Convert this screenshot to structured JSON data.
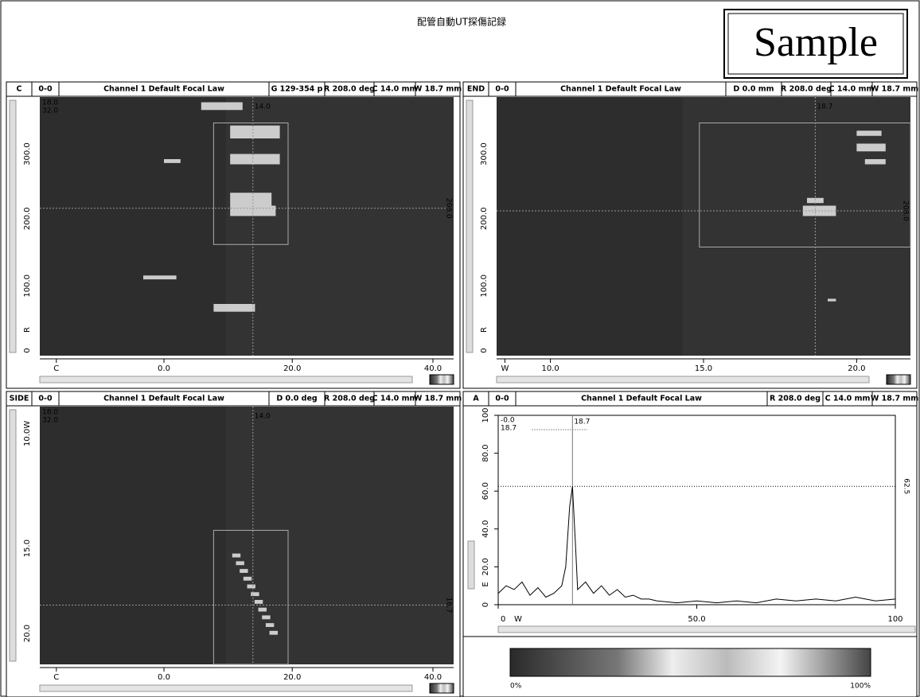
{
  "header": {
    "title": "配管自動UT探傷記録",
    "stamp": "Sample"
  },
  "panels": [
    {
      "view": "C",
      "group": "0-0",
      "focal_law": "Channel 1 Default Focal Law",
      "readouts": [
        "G 129-354 p",
        "R 208.0 deg",
        "C 14.0 mm",
        "W 18.7 mm"
      ],
      "left_axis": [
        "300.0",
        "200.0",
        "100.0",
        "R",
        "0"
      ],
      "bottom_axis": [
        "C",
        "0.0",
        "20.0",
        "40.0"
      ],
      "cursor_labels": [
        "14.0",
        "208.0",
        "18.0",
        "32.0"
      ]
    },
    {
      "view": "END",
      "group": "0-0",
      "focal_law": "Channel 1 Default Focal Law",
      "readouts": [
        "D 0.0 mm",
        "R 208.0 deg",
        "C 14.0 mm",
        "W 18.7 mm"
      ],
      "left_axis": [
        "300.0",
        "200.0",
        "100.0",
        "R",
        "0"
      ],
      "bottom_axis": [
        "W",
        "10.0",
        "15.0",
        "20.0"
      ],
      "cursor_labels": [
        "18.7",
        "208.0"
      ]
    },
    {
      "view": "SIDE",
      "group": "0-0",
      "focal_law": "Channel 1 Default Focal Law",
      "readouts": [
        "D 0.0 deg",
        "R 208.0 deg",
        "C 14.0 mm",
        "W 18.7 mm"
      ],
      "left_axis": [
        "W",
        "10.0",
        "15.0",
        "20.0"
      ],
      "bottom_axis": [
        "C",
        "0.0",
        "20.0",
        "40.0"
      ],
      "cursor_labels": [
        "14.0",
        "18.7",
        "18.0",
        "32.0"
      ]
    }
  ],
  "a_scan_header": {
    "view": "A",
    "group": "0-0",
    "focal_law": "Channel 1 Default Focal Law",
    "readouts": [
      "R 208.0 deg",
      "C 14.0 mm",
      "W 18.7 mm"
    ]
  },
  "chart_data": {
    "type": "line",
    "x": [
      0,
      2,
      4,
      6,
      8,
      10,
      12,
      14,
      16,
      17,
      18,
      18.7,
      19.5,
      20,
      22,
      24,
      26,
      28,
      30,
      32,
      34,
      36,
      38,
      40,
      45,
      50,
      55,
      60,
      65,
      70,
      75,
      80,
      85,
      90,
      95,
      100
    ],
    "series": [
      {
        "color": "#000000",
        "values": [
          6,
          10,
          8,
          12,
          5,
          9,
          4,
          6,
          10,
          20,
          52,
          62.5,
          30,
          8,
          12,
          6,
          10,
          5,
          8,
          4,
          5,
          3,
          3,
          2,
          1,
          2,
          1,
          2,
          1,
          3,
          2,
          3,
          2,
          4,
          2,
          3
        ]
      }
    ],
    "xlim": [
      0,
      100
    ],
    "ylim": [
      0,
      100
    ],
    "xticks": [
      0,
      {
        "value": 50,
        "label": "50.0"
      },
      100
    ],
    "yticks": [
      0,
      {
        "value": 20,
        "label": "20.0"
      },
      {
        "value": 40,
        "label": "40.0"
      },
      {
        "value": 60,
        "label": "60.0"
      },
      {
        "value": 80,
        "label": "80.0"
      },
      100
    ],
    "x_axis_label": "W",
    "y_axis_label": "E",
    "gate_level": 62.5,
    "cursor_x": 18.7,
    "cursor_labels": [
      "-0.0",
      "18.7"
    ]
  },
  "color_scale": {
    "min_label": "0%",
    "max_label": "100%"
  }
}
